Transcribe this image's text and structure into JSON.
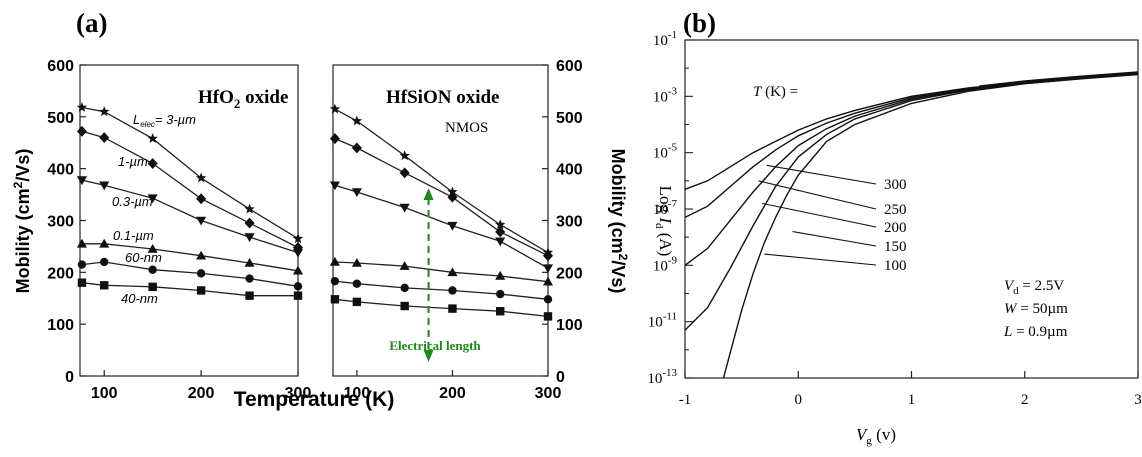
{
  "panel_a_label": "(a)",
  "panel_b_label": "(b)",
  "chart_data": [
    {
      "type": "line",
      "title": "HfO2 oxide",
      "title_main": "HfO",
      "title_sub": "2",
      "title_rest": " oxide",
      "ylabel": "Mobility (cm²/Vs)",
      "ylabel_main": "Mobility (cm",
      "ylabel_sup": "2",
      "ylabel_rest": "/Vs)",
      "xlabel": "Temperature (K)",
      "xlim": [
        75,
        300
      ],
      "ylim": [
        0,
        600
      ],
      "xticks": [
        100,
        200,
        300
      ],
      "yticks": [
        0,
        100,
        200,
        300,
        400,
        500,
        600
      ],
      "grid": false,
      "series": [
        {
          "name": "Lelec= 3-µm",
          "label_main": "L",
          "label_sub": "elec",
          "label_rest": "= 3-µm",
          "marker": "star",
          "x": [
            77,
            100,
            150,
            200,
            250,
            300
          ],
          "y": [
            518,
            510,
            458,
            382,
            322,
            265
          ]
        },
        {
          "name": "1-µm",
          "marker": "diamond",
          "x": [
            77,
            100,
            150,
            200,
            250,
            300
          ],
          "y": [
            472,
            460,
            410,
            342,
            295,
            248
          ]
        },
        {
          "name": "0.3-µm",
          "marker": "triangle-down",
          "x": [
            77,
            100,
            150,
            200,
            250,
            300
          ],
          "y": [
            378,
            368,
            343,
            300,
            268,
            238
          ]
        },
        {
          "name": "0.1-µm",
          "marker": "triangle-up",
          "x": [
            77,
            100,
            150,
            200,
            250,
            300
          ],
          "y": [
            255,
            255,
            245,
            232,
            218,
            203
          ]
        },
        {
          "name": "60-nm",
          "marker": "circle",
          "x": [
            77,
            100,
            150,
            200,
            250,
            300
          ],
          "y": [
            215,
            220,
            205,
            198,
            188,
            173
          ]
        },
        {
          "name": "40-nm",
          "marker": "square",
          "x": [
            77,
            100,
            150,
            200,
            250,
            300
          ],
          "y": [
            180,
            175,
            172,
            165,
            155,
            155
          ]
        }
      ]
    },
    {
      "type": "line",
      "title": "HfSiON oxide",
      "subtitle": "NMOS",
      "ylabel": "Mobility (cm²/Vs)",
      "ylabel_main": "Mobility (cm",
      "ylabel_sup": "2",
      "ylabel_rest": "/Vs)",
      "xlim": [
        75,
        300
      ],
      "ylim": [
        0,
        600
      ],
      "xticks": [
        100,
        200,
        300
      ],
      "yticks": [
        0,
        100,
        200,
        300,
        400,
        500,
        600
      ],
      "grid": false,
      "annotations": [
        {
          "text": "Electrical length",
          "color": "#1a8a1a",
          "x": 175,
          "y_from": 355,
          "y_to": 35
        }
      ],
      "series": [
        {
          "marker": "star",
          "x": [
            77,
            100,
            150,
            200,
            250,
            300
          ],
          "y": [
            515,
            492,
            425,
            355,
            292,
            238
          ]
        },
        {
          "marker": "diamond",
          "x": [
            77,
            100,
            150,
            200,
            250,
            300
          ],
          "y": [
            458,
            440,
            392,
            345,
            278,
            232
          ]
        },
        {
          "marker": "triangle-down",
          "x": [
            77,
            100,
            150,
            200,
            250,
            300
          ],
          "y": [
            368,
            355,
            325,
            290,
            260,
            208
          ]
        },
        {
          "marker": "triangle-up",
          "x": [
            77,
            100,
            150,
            200,
            250,
            300
          ],
          "y": [
            220,
            218,
            212,
            200,
            193,
            182
          ]
        },
        {
          "marker": "circle",
          "x": [
            77,
            100,
            150,
            200,
            250,
            300
          ],
          "y": [
            183,
            178,
            170,
            165,
            158,
            148
          ]
        },
        {
          "marker": "square",
          "x": [
            77,
            100,
            150,
            200,
            250,
            300
          ],
          "y": [
            148,
            143,
            135,
            130,
            125,
            115
          ]
        }
      ]
    },
    {
      "type": "line",
      "ylabel": "Log Id (A)",
      "ylabel_main": "Log ",
      "ylabel_var": "I",
      "ylabel_sub": "d",
      "ylabel_rest": " (A)",
      "xlabel": "Vg (v)",
      "xlabel_main": "V",
      "xlabel_sub": "g",
      "xlabel_rest": " (v)",
      "xlim": [
        -1,
        3
      ],
      "ylim": [
        -13,
        -1
      ],
      "yscale": "log",
      "xticks": [
        -1,
        0,
        1,
        2,
        3
      ],
      "yticks": [
        -13,
        -11,
        -9,
        -7,
        -5,
        -3,
        -1
      ],
      "ytick_base": "10",
      "grid": false,
      "legend_title": "T (K) =",
      "legend_title_var": "T",
      "legend_title_rest": " (K) =",
      "params": [
        {
          "var": "V",
          "sub": "d",
          "rest": " = 2.5V"
        },
        {
          "var": "W",
          "sub": "",
          "rest": " = 50µm"
        },
        {
          "var": "L",
          "sub": "",
          "rest": " = 0.9µm"
        }
      ],
      "series": [
        {
          "name": "300",
          "x": [
            -1,
            -0.8,
            -0.6,
            -0.4,
            -0.2,
            0,
            0.25,
            0.5,
            1,
            1.5,
            2,
            2.5,
            3
          ],
          "y": [
            -6.3,
            -6.0,
            -5.5,
            -5.0,
            -4.6,
            -4.2,
            -3.8,
            -3.5,
            -3.0,
            -2.7,
            -2.5,
            -2.35,
            -2.2
          ]
        },
        {
          "name": "250",
          "x": [
            -1,
            -0.8,
            -0.6,
            -0.4,
            -0.2,
            0,
            0.25,
            0.5,
            1,
            1.5,
            2,
            2.5,
            3
          ],
          "y": [
            -7.3,
            -6.9,
            -6.2,
            -5.5,
            -4.9,
            -4.4,
            -3.95,
            -3.6,
            -3.05,
            -2.72,
            -2.5,
            -2.35,
            -2.2
          ]
        },
        {
          "name": "200",
          "x": [
            -1,
            -0.8,
            -0.6,
            -0.4,
            -0.2,
            0,
            0.25,
            0.5,
            1,
            1.5,
            2,
            2.5,
            3
          ],
          "y": [
            -9.0,
            -8.4,
            -7.4,
            -6.4,
            -5.5,
            -4.75,
            -4.15,
            -3.7,
            -3.1,
            -2.75,
            -2.5,
            -2.35,
            -2.2
          ]
        },
        {
          "name": "150",
          "x": [
            -1,
            -0.8,
            -0.6,
            -0.4,
            -0.2,
            0,
            0.25,
            0.5,
            1,
            1.5,
            2,
            2.5,
            3
          ],
          "y": [
            -11.3,
            -10.5,
            -9.1,
            -7.6,
            -6.2,
            -5.15,
            -4.35,
            -3.8,
            -3.15,
            -2.78,
            -2.52,
            -2.35,
            -2.2
          ]
        },
        {
          "name": "100",
          "x": [
            -0.66,
            -0.6,
            -0.5,
            -0.4,
            -0.3,
            -0.2,
            -0.1,
            0,
            0.25,
            0.5,
            1,
            1.5,
            2,
            2.5,
            3
          ],
          "y": [
            -13,
            -12.1,
            -10.6,
            -9.3,
            -8.2,
            -7.3,
            -6.5,
            -5.8,
            -4.6,
            -4.0,
            -3.25,
            -2.82,
            -2.55,
            -2.37,
            -2.2
          ]
        }
      ]
    }
  ]
}
